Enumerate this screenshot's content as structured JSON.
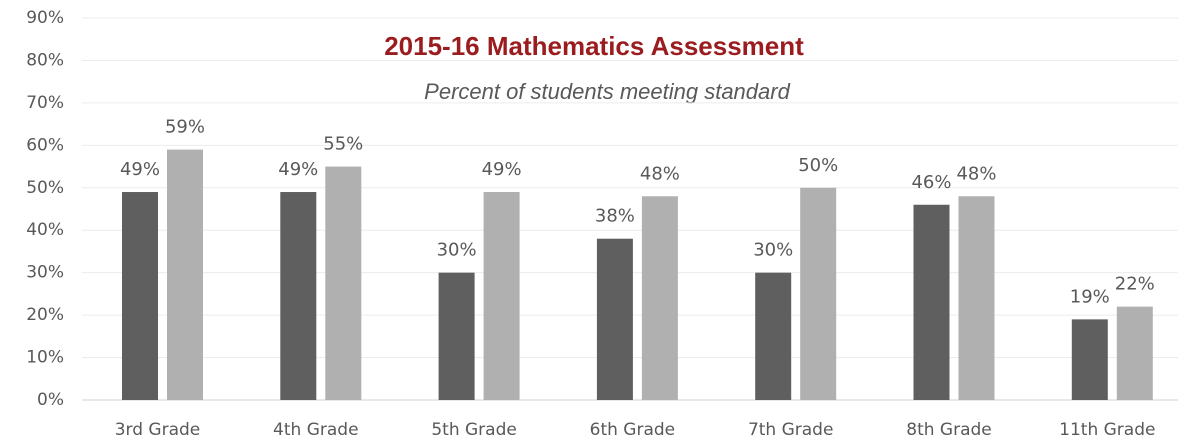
{
  "chart_data": {
    "type": "bar",
    "title": "2015-16 Mathematics Assessment",
    "subtitle": "Percent of students meeting standard",
    "categories": [
      "3rd Grade",
      "4th Grade",
      "5th Grade",
      "6th Grade",
      "7th Grade",
      "8th Grade",
      "11th Grade"
    ],
    "series": [
      {
        "color": "#5f5f5f",
        "values": [
          49,
          49,
          30,
          38,
          30,
          46,
          19
        ],
        "value_labels": [
          "49%",
          "49%",
          "30%",
          "38%",
          "30%",
          "46%",
          "19%"
        ]
      },
      {
        "color": "#b0b0b0",
        "values": [
          59,
          55,
          49,
          48,
          50,
          48,
          22
        ],
        "value_labels": [
          "59%",
          "55%",
          "49%",
          "48%",
          "50%",
          "48%",
          "22%"
        ]
      }
    ],
    "ylim": [
      0,
      90
    ],
    "yticks": [
      {
        "value": 0,
        "label": "0%"
      },
      {
        "value": 10,
        "label": "10%"
      },
      {
        "value": 20,
        "label": "20%"
      },
      {
        "value": 30,
        "label": "30%"
      },
      {
        "value": 40,
        "label": "40%"
      },
      {
        "value": 50,
        "label": "50%"
      },
      {
        "value": 60,
        "label": "60%"
      },
      {
        "value": 70,
        "label": "70%"
      },
      {
        "value": 80,
        "label": "80%"
      },
      {
        "value": 90,
        "label": "90%"
      }
    ],
    "grid": true
  }
}
